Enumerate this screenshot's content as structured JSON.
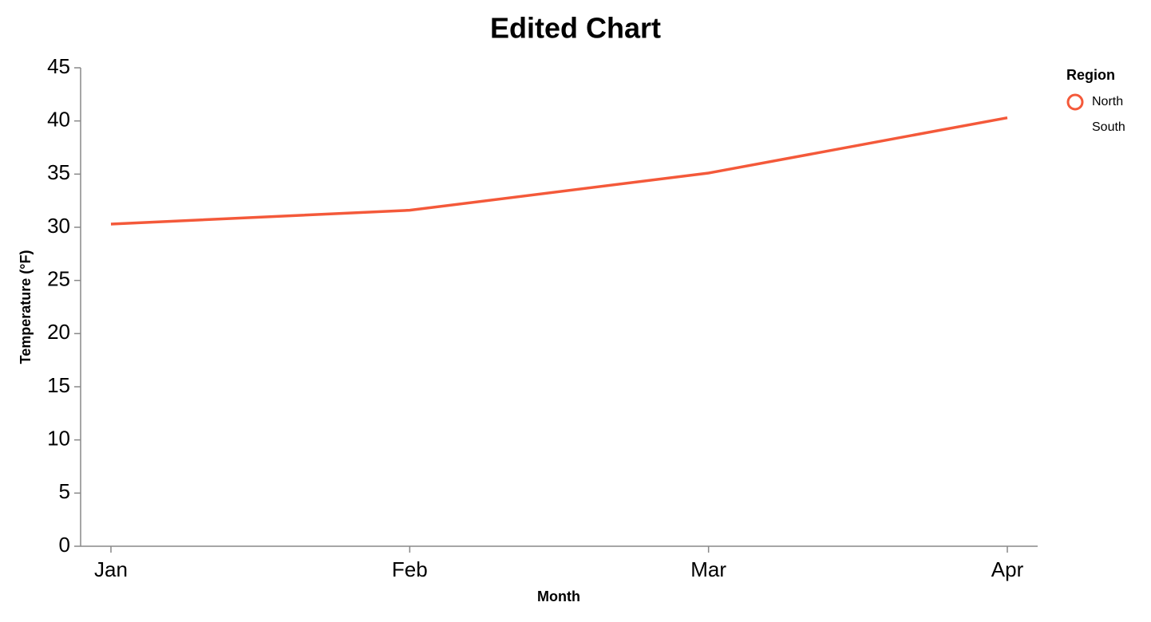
{
  "chart_data": {
    "type": "line",
    "title": "Edited Chart",
    "x_label": "Month",
    "y_label": "Temperature (°F)",
    "categories": [
      "Jan",
      "Feb",
      "Mar",
      "Apr"
    ],
    "series": [
      {
        "name": "North",
        "color": "#f4593a",
        "values": [
          30.3,
          31.6,
          35.1,
          40.3
        ]
      },
      {
        "name": "South",
        "color": "transparent",
        "values": [
          null,
          null,
          null,
          null
        ]
      }
    ],
    "ylim": [
      0,
      45
    ],
    "yticks": [
      0,
      5,
      10,
      15,
      20,
      25,
      30,
      35,
      40,
      45
    ],
    "grid": false,
    "legend_title": "Region",
    "legend_position": "right"
  }
}
